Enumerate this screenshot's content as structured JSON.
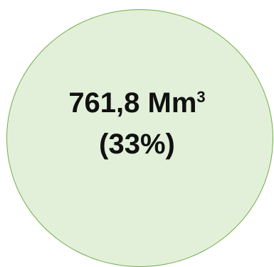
{
  "circle": {
    "fill_color": "#E2F0D9",
    "border_color": "#70AD47"
  },
  "label": {
    "value_text": "761,8 Mm",
    "unit_superscript": "3",
    "percent_text": "(33%)"
  }
}
